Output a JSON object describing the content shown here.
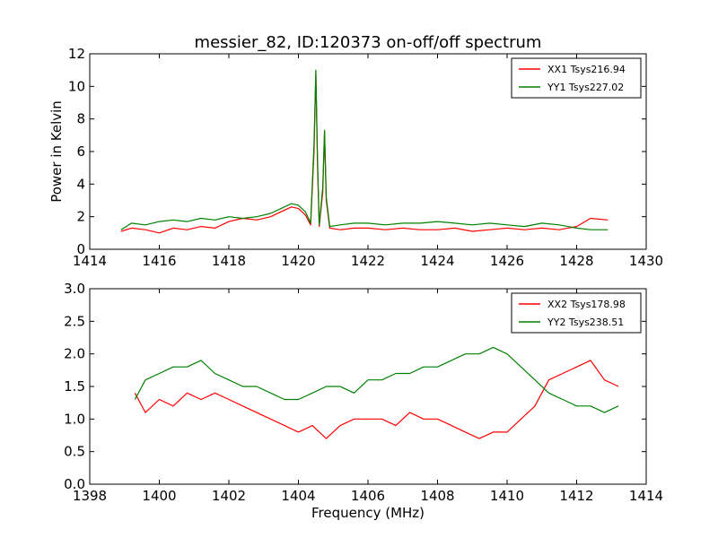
{
  "chart_data": [
    {
      "type": "line",
      "title": "messier_82, ID:120373 on-off/off spectrum",
      "xlabel": "",
      "ylabel": "Power in Kelvin",
      "xlim": [
        1414,
        1430
      ],
      "ylim": [
        0,
        12
      ],
      "xticks": [
        1414,
        1416,
        1418,
        1420,
        1422,
        1424,
        1426,
        1428,
        1430
      ],
      "yticks": [
        0,
        2,
        4,
        6,
        8,
        10,
        12
      ],
      "grid": false,
      "legend_position": "top-right",
      "series": [
        {
          "name": "XX1 Tsys216.94",
          "color": "#ff0000",
          "x": [
            1414.9,
            1415.2,
            1415.6,
            1416.0,
            1416.4,
            1416.8,
            1417.2,
            1417.6,
            1418.0,
            1418.4,
            1418.8,
            1419.2,
            1419.5,
            1419.8,
            1420.0,
            1420.2,
            1420.35,
            1420.45,
            1420.5,
            1420.55,
            1420.6,
            1420.7,
            1420.75,
            1420.8,
            1420.9,
            1421.2,
            1421.6,
            1422.0,
            1422.5,
            1423.0,
            1423.5,
            1424.0,
            1424.5,
            1425.0,
            1425.5,
            1426.0,
            1426.5,
            1427.0,
            1427.5,
            1428.0,
            1428.4,
            1428.9
          ],
          "y": [
            1.1,
            1.3,
            1.2,
            1.0,
            1.3,
            1.2,
            1.4,
            1.3,
            1.7,
            1.9,
            1.8,
            2.0,
            2.3,
            2.6,
            2.5,
            2.1,
            1.5,
            6.0,
            10.8,
            5.0,
            1.4,
            3.5,
            7.2,
            3.0,
            1.3,
            1.2,
            1.3,
            1.3,
            1.2,
            1.3,
            1.2,
            1.2,
            1.3,
            1.1,
            1.2,
            1.3,
            1.2,
            1.3,
            1.2,
            1.4,
            1.9,
            1.8
          ]
        },
        {
          "name": "YY1 Tsys227.02",
          "color": "#008000",
          "x": [
            1414.9,
            1415.2,
            1415.6,
            1416.0,
            1416.4,
            1416.8,
            1417.2,
            1417.6,
            1418.0,
            1418.4,
            1418.8,
            1419.2,
            1419.5,
            1419.8,
            1420.0,
            1420.2,
            1420.35,
            1420.45,
            1420.5,
            1420.55,
            1420.6,
            1420.7,
            1420.75,
            1420.8,
            1420.9,
            1421.2,
            1421.6,
            1422.0,
            1422.5,
            1423.0,
            1423.5,
            1424.0,
            1424.5,
            1425.0,
            1425.5,
            1426.0,
            1426.5,
            1427.0,
            1427.5,
            1428.0,
            1428.4,
            1428.9
          ],
          "y": [
            1.2,
            1.6,
            1.5,
            1.7,
            1.8,
            1.7,
            1.9,
            1.8,
            2.0,
            1.9,
            2.0,
            2.2,
            2.5,
            2.8,
            2.7,
            2.3,
            1.6,
            6.5,
            11.0,
            5.5,
            1.5,
            3.8,
            7.3,
            3.2,
            1.4,
            1.5,
            1.6,
            1.6,
            1.5,
            1.6,
            1.6,
            1.7,
            1.6,
            1.5,
            1.6,
            1.5,
            1.4,
            1.6,
            1.5,
            1.3,
            1.2,
            1.2
          ]
        }
      ]
    },
    {
      "type": "line",
      "title": "",
      "xlabel": "Frequency (MHz)",
      "ylabel": "",
      "xlim": [
        1398,
        1414
      ],
      "ylim": [
        0,
        3
      ],
      "xticks": [
        1398,
        1400,
        1402,
        1404,
        1406,
        1408,
        1410,
        1412,
        1414
      ],
      "yticks": [
        0.0,
        0.5,
        1.0,
        1.5,
        2.0,
        2.5,
        3.0
      ],
      "grid": false,
      "legend_position": "top-right",
      "series": [
        {
          "name": "XX2 Tsys178.98",
          "color": "#ff0000",
          "x": [
            1399.3,
            1399.6,
            1400.0,
            1400.4,
            1400.8,
            1401.2,
            1401.6,
            1402.0,
            1402.4,
            1402.8,
            1403.2,
            1403.6,
            1404.0,
            1404.4,
            1404.8,
            1405.2,
            1405.6,
            1406.0,
            1406.4,
            1406.8,
            1407.2,
            1407.6,
            1408.0,
            1408.4,
            1408.8,
            1409.2,
            1409.6,
            1410.0,
            1410.4,
            1410.8,
            1411.2,
            1411.6,
            1412.0,
            1412.4,
            1412.8,
            1413.2
          ],
          "y": [
            1.4,
            1.1,
            1.3,
            1.2,
            1.4,
            1.3,
            1.4,
            1.3,
            1.2,
            1.1,
            1.0,
            0.9,
            0.8,
            0.9,
            0.7,
            0.9,
            1.0,
            1.0,
            1.0,
            0.9,
            1.1,
            1.0,
            1.0,
            0.9,
            0.8,
            0.7,
            0.8,
            0.8,
            1.0,
            1.2,
            1.6,
            1.7,
            1.8,
            1.9,
            1.6,
            1.5
          ]
        },
        {
          "name": "YY2 Tsys238.51",
          "color": "#008000",
          "x": [
            1399.3,
            1399.6,
            1400.0,
            1400.4,
            1400.8,
            1401.2,
            1401.6,
            1402.0,
            1402.4,
            1402.8,
            1403.2,
            1403.6,
            1404.0,
            1404.4,
            1404.8,
            1405.2,
            1405.6,
            1406.0,
            1406.4,
            1406.8,
            1407.2,
            1407.6,
            1408.0,
            1408.4,
            1408.8,
            1409.2,
            1409.6,
            1410.0,
            1410.4,
            1410.8,
            1411.2,
            1411.6,
            1412.0,
            1412.4,
            1412.8,
            1413.2
          ],
          "y": [
            1.3,
            1.6,
            1.7,
            1.8,
            1.8,
            1.9,
            1.7,
            1.6,
            1.5,
            1.5,
            1.4,
            1.3,
            1.3,
            1.4,
            1.5,
            1.5,
            1.4,
            1.6,
            1.6,
            1.7,
            1.7,
            1.8,
            1.8,
            1.9,
            2.0,
            2.0,
            2.1,
            2.0,
            1.8,
            1.6,
            1.4,
            1.3,
            1.2,
            1.2,
            1.1,
            1.2
          ]
        }
      ]
    }
  ]
}
